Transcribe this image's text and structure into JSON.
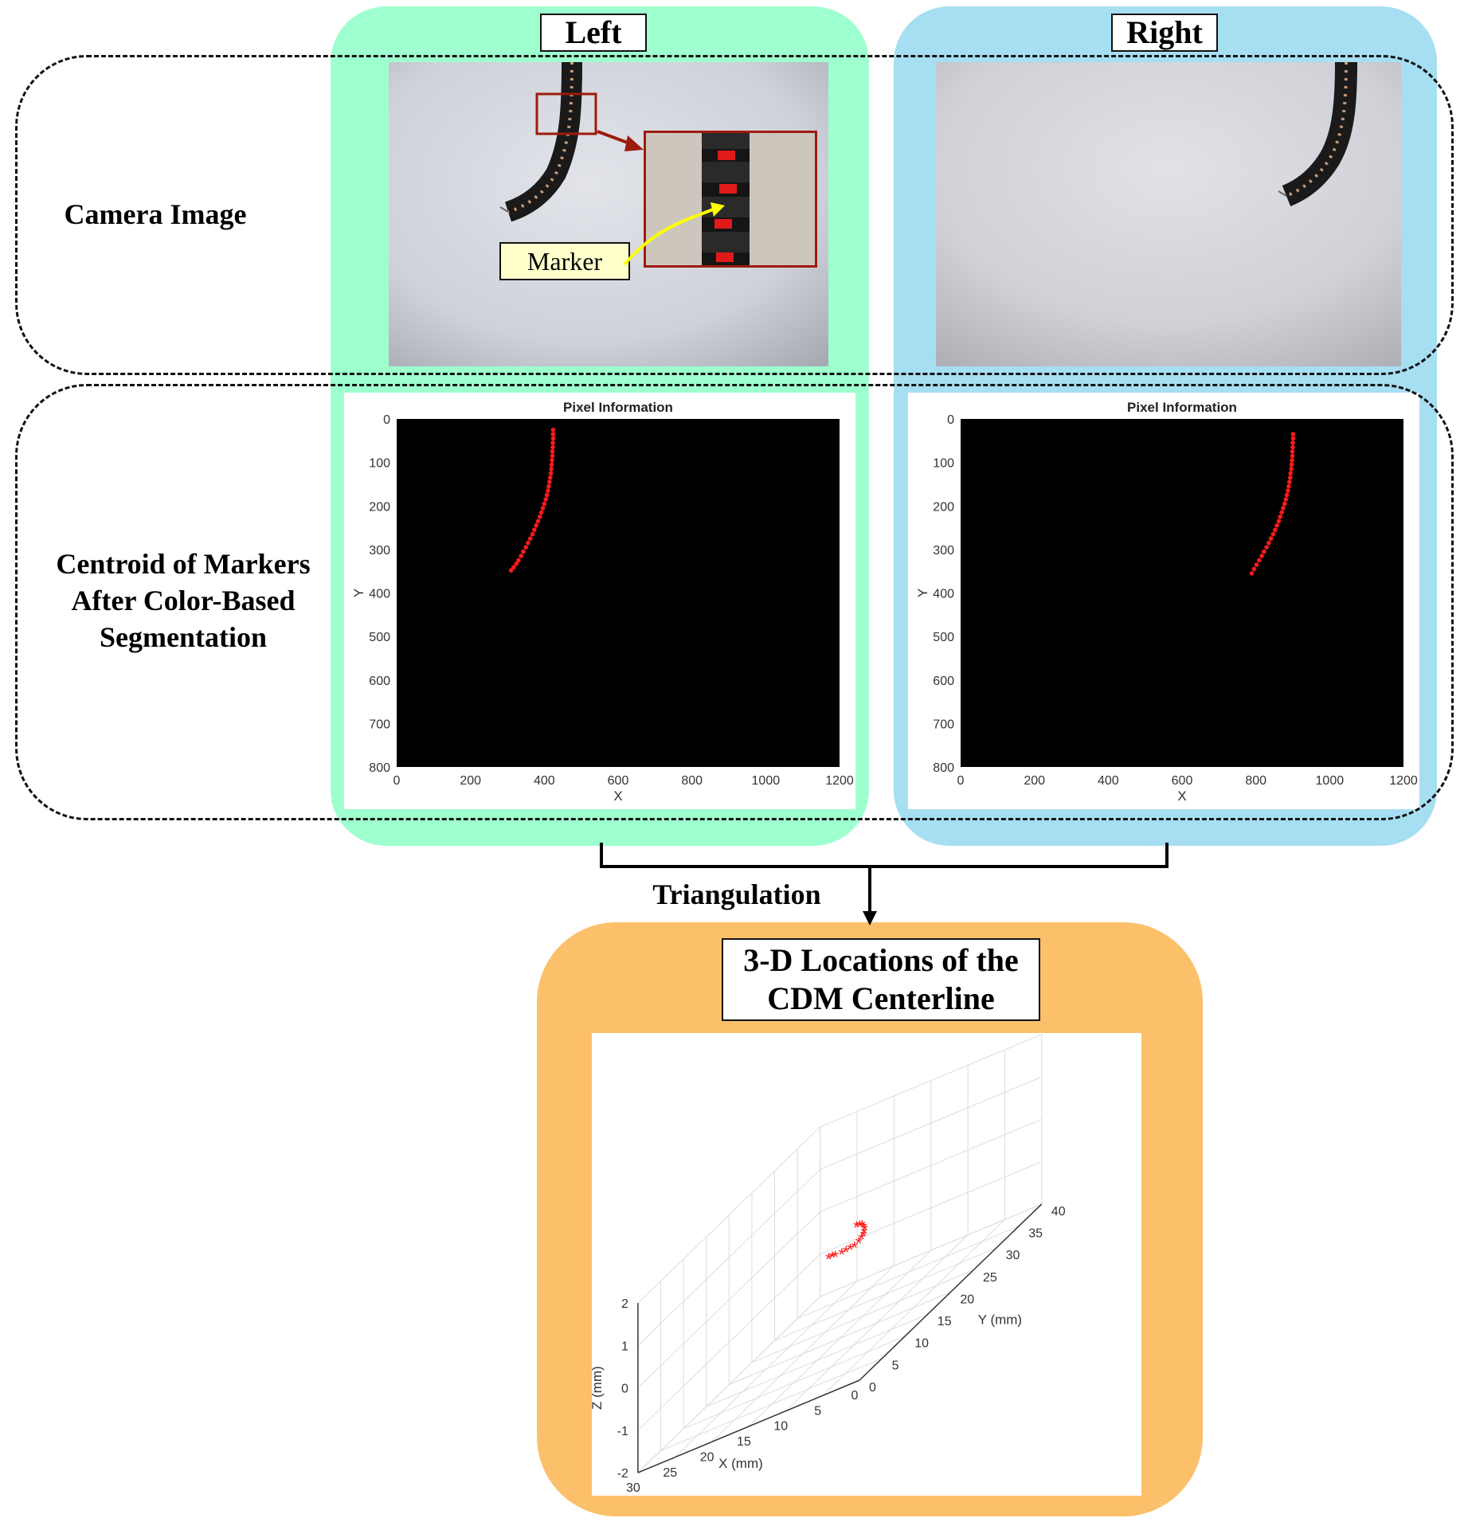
{
  "columns": {
    "left_title": "Left",
    "right_title": "Right"
  },
  "rows": {
    "camera_label": "Camera Image",
    "centroid_label_lines": [
      "Centroid of Markers",
      "After Color-Based",
      "Segmentation"
    ]
  },
  "callout": {
    "marker_label": "Marker"
  },
  "arrow_label": "Triangulation",
  "result": {
    "title_lines": [
      "3-D Locations of the",
      "CDM Centerline"
    ]
  },
  "colors": {
    "left_panel": "#9effcf",
    "right_panel": "#a6def2",
    "result_panel": "#fcc06a",
    "marker_red": "#ff1a1a",
    "callout_frame": "#9e1b0d",
    "marker_label_bg": "#ffffcc",
    "yellow_arrow": "#ffff00"
  },
  "chart_data": [
    {
      "type": "scatter",
      "title": "Pixel Information",
      "xlabel": "X",
      "ylabel": "Y",
      "xlim": [
        0,
        1200
      ],
      "ylim": [
        800,
        0
      ],
      "xticks": [
        0,
        200,
        400,
        600,
        800,
        1000,
        1200
      ],
      "yticks": [
        0,
        100,
        200,
        300,
        400,
        500,
        600,
        700,
        800
      ],
      "background": "black",
      "series": [
        {
          "color": "#ff1a1a",
          "x": [
            424,
            424,
            424,
            423,
            423,
            422,
            422,
            421,
            420,
            419,
            418,
            416,
            414,
            412,
            410,
            407,
            404,
            400,
            396,
            392,
            388,
            383,
            378,
            373,
            368,
            362,
            356,
            350,
            343,
            337,
            330,
            324,
            317,
            310
          ],
          "y": [
            25,
            35,
            45,
            55,
            65,
            75,
            85,
            95,
            105,
            115,
            125,
            135,
            145,
            155,
            165,
            175,
            185,
            195,
            205,
            215,
            225,
            235,
            245,
            255,
            265,
            275,
            285,
            295,
            305,
            315,
            325,
            333,
            341,
            348
          ]
        }
      ]
    },
    {
      "type": "scatter",
      "title": "Pixel Information",
      "xlabel": "X",
      "ylabel": "Y",
      "xlim": [
        0,
        1200
      ],
      "ylim": [
        800,
        0
      ],
      "xticks": [
        0,
        200,
        400,
        600,
        800,
        1000,
        1200
      ],
      "yticks": [
        0,
        100,
        200,
        300,
        400,
        500,
        600,
        700,
        800
      ],
      "background": "black",
      "series": [
        {
          "color": "#ff1a1a",
          "x": [
            901,
            901,
            900,
            900,
            899,
            899,
            898,
            897,
            896,
            894,
            893,
            891,
            889,
            887,
            884,
            881,
            878,
            874,
            870,
            866,
            862,
            857,
            852,
            847,
            841,
            835,
            829,
            822,
            816,
            809,
            802,
            795,
            789
          ],
          "y": [
            35,
            45,
            55,
            65,
            75,
            85,
            95,
            105,
            115,
            125,
            135,
            145,
            155,
            165,
            175,
            185,
            195,
            205,
            215,
            225,
            235,
            245,
            255,
            265,
            275,
            285,
            295,
            305,
            315,
            325,
            335,
            345,
            355
          ]
        }
      ]
    },
    {
      "type": "scatter",
      "projection": "3d",
      "xlabel": "X (mm)",
      "ylabel": "Y (mm)",
      "zlabel": "Z (mm)",
      "xlim": [
        0,
        30
      ],
      "ylim": [
        0,
        40
      ],
      "zlim": [
        -2,
        2
      ],
      "xticks": [
        0,
        5,
        10,
        15,
        20,
        25,
        30
      ],
      "yticks": [
        0,
        5,
        10,
        15,
        20,
        25,
        30,
        35,
        40
      ],
      "zticks": [
        -2,
        -1,
        0,
        1,
        2
      ],
      "marker": "*",
      "grid": true,
      "series": [
        {
          "color": "#ff1a1a",
          "x": [
            16.5,
            16.0,
            15.0,
            13.5,
            12.0,
            10.5,
            9.0,
            7.5,
            6.2,
            5.0,
            4.0,
            3.0,
            2.2,
            1.5,
            0.9,
            0.4
          ],
          "y": [
            20.0,
            20.0,
            19.0,
            18.0,
            16.5,
            15.0,
            13.5,
            12.0,
            10.5,
            9.0,
            7.5,
            6.0,
            4.5,
            3.0,
            1.5,
            0.0
          ],
          "z": [
            0.0,
            0.0,
            0.05,
            0.1,
            0.2,
            0.3,
            0.4,
            0.55,
            0.7,
            0.85,
            1.0,
            1.15,
            1.3,
            1.45,
            1.55,
            1.65
          ]
        }
      ]
    }
  ]
}
